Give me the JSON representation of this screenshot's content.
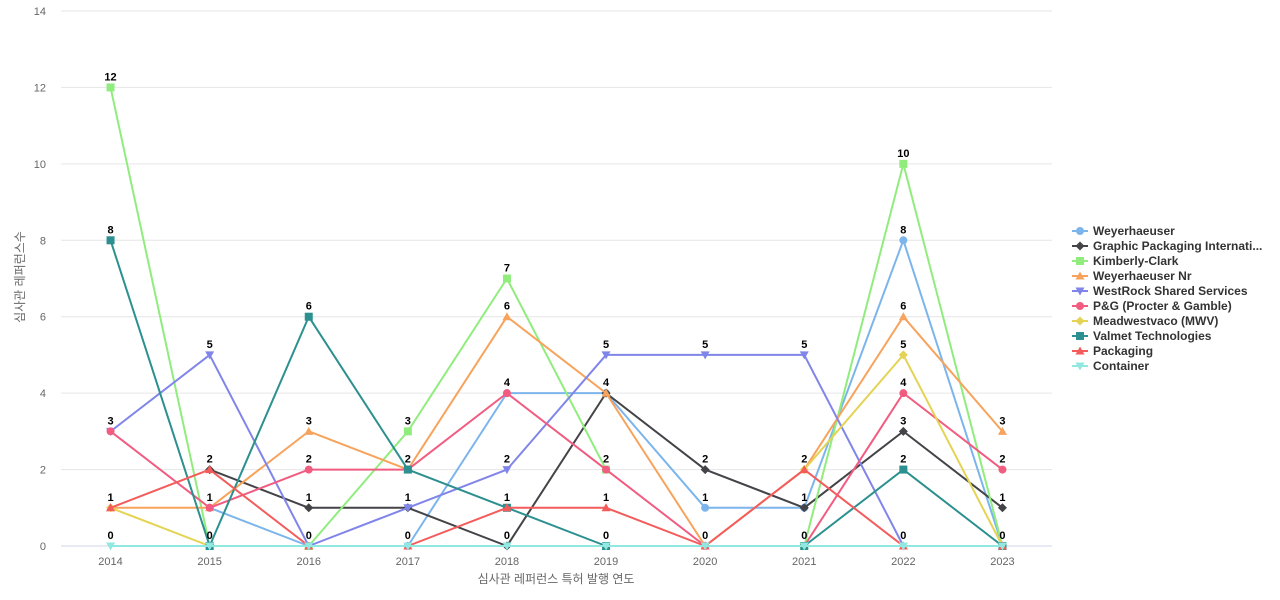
{
  "chart_data": {
    "type": "line",
    "title": "",
    "xlabel": "심사관 레퍼런스 특허 발행 연도",
    "ylabel": "심사관 레퍼런스수",
    "ylim": [
      0,
      14
    ],
    "yticks": [
      0,
      2,
      4,
      6,
      8,
      10,
      12,
      14
    ],
    "grid": true,
    "legend_position": "right",
    "x": [
      "2014",
      "2015",
      "2016",
      "2017",
      "2018",
      "2019",
      "2020",
      "2021",
      "2022",
      "2023"
    ],
    "series": [
      {
        "name": "Weyerhaeuser",
        "color": "#7cb5ec",
        "marker": "circle",
        "values": [
          null,
          1,
          0,
          0,
          4,
          4,
          1,
          1,
          8,
          0
        ],
        "labels": [
          null,
          null,
          null,
          null,
          null,
          null,
          1,
          null,
          8,
          null
        ]
      },
      {
        "name": "Graphic Packaging Internati...",
        "color": "#434348",
        "marker": "diamond",
        "values": [
          null,
          2,
          1,
          1,
          0,
          4,
          2,
          1,
          3,
          1
        ],
        "labels": [
          null,
          2,
          1,
          1,
          0,
          4,
          2,
          1,
          3,
          1
        ]
      },
      {
        "name": "Kimberly-Clark",
        "color": "#90ed7d",
        "marker": "square",
        "values": [
          12,
          0,
          0,
          3,
          7,
          2,
          null,
          0,
          10,
          0
        ],
        "labels": [
          12,
          null,
          null,
          3,
          7,
          2,
          null,
          null,
          10,
          null
        ]
      },
      {
        "name": "Weyerhaeuser Nr",
        "color": "#f7a35c",
        "marker": "triangle",
        "values": [
          1,
          1,
          3,
          2,
          6,
          4,
          0,
          2,
          6,
          3
        ],
        "labels": [
          null,
          null,
          3,
          null,
          6,
          null,
          null,
          null,
          6,
          3
        ]
      },
      {
        "name": "WestRock Shared Services",
        "color": "#8085e9",
        "marker": "triangle-down",
        "values": [
          3,
          5,
          0,
          1,
          2,
          5,
          5,
          5,
          0,
          null
        ],
        "labels": [
          null,
          5,
          null,
          null,
          2,
          5,
          5,
          5,
          0,
          null
        ]
      },
      {
        "name": "P&G (Procter & Gamble)",
        "color": "#f15c80",
        "marker": "circle",
        "values": [
          3,
          1,
          2,
          2,
          4,
          2,
          0,
          0,
          4,
          2
        ],
        "labels": [
          3,
          1,
          2,
          2,
          4,
          null,
          null,
          0,
          4,
          2
        ]
      },
      {
        "name": "Meadwestvaco (MWV)",
        "color": "#e4d354",
        "marker": "diamond",
        "values": [
          1,
          0,
          null,
          null,
          null,
          null,
          null,
          2,
          5,
          0
        ],
        "labels": [
          null,
          null,
          null,
          null,
          null,
          null,
          null,
          null,
          5,
          0
        ]
      },
      {
        "name": "Valmet Technologies",
        "color": "#2b908f",
        "marker": "square",
        "values": [
          8,
          0,
          6,
          2,
          1,
          0,
          null,
          0,
          2,
          0
        ],
        "labels": [
          8,
          0,
          6,
          null,
          1,
          null,
          null,
          null,
          2,
          null
        ]
      },
      {
        "name": "Packaging",
        "color": "#f45b5b",
        "marker": "triangle",
        "values": [
          1,
          2,
          0,
          0,
          1,
          1,
          0,
          2,
          0,
          0
        ],
        "labels": [
          1,
          null,
          0,
          0,
          null,
          1,
          0,
          2,
          null,
          null
        ]
      },
      {
        "name": "Container",
        "color": "#91e8e1",
        "marker": "triangle-down",
        "values": [
          0,
          0,
          0,
          0,
          0,
          0,
          0,
          0,
          0,
          0
        ],
        "labels": [
          0,
          null,
          null,
          null,
          null,
          0,
          null,
          null,
          null,
          null
        ]
      }
    ]
  }
}
